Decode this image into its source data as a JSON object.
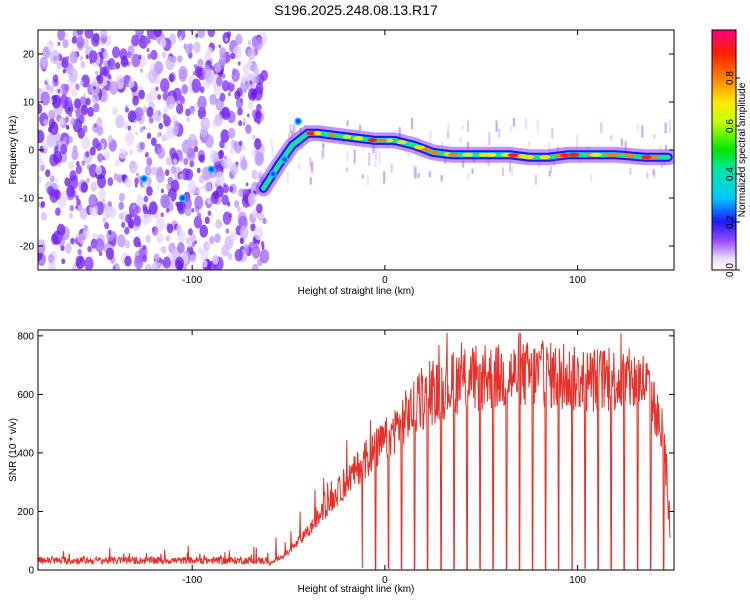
{
  "chart_data": [
    {
      "type": "heatmap",
      "title": "S196.2025.248.08.13.R17",
      "xlabel": "Height of straight line (km)",
      "ylabel": "Frequency (Hz)",
      "xlim": [
        -180,
        150
      ],
      "ylim": [
        -25,
        25
      ],
      "xticks": [
        -100,
        0,
        100
      ],
      "xtick_labels": [
        "-100",
        "0",
        "100"
      ],
      "yticks": [
        -20,
        -10,
        0,
        10,
        20
      ],
      "ytick_labels": [
        "-20",
        "-10",
        "0",
        "10",
        "20"
      ],
      "colorbar": {
        "label": "Normalized spectral amplitude",
        "range": [
          0,
          1
        ],
        "ticks": [
          0.0,
          0.2,
          0.4,
          0.6,
          0.8
        ],
        "tick_labels": [
          "0.0",
          "0.2",
          "0.4",
          "0.6",
          "0.8"
        ]
      },
      "ridge": {
        "x": [
          -63,
          -55,
          -48,
          -40,
          -35,
          -25,
          -15,
          -5,
          5,
          15,
          25,
          35,
          50,
          65,
          75,
          85,
          95,
          105,
          120,
          135,
          147
        ],
        "y": [
          -8,
          -3,
          1,
          3.5,
          3.5,
          3,
          2.5,
          2,
          2,
          1,
          -0.5,
          -1,
          -1,
          -1,
          -1.5,
          -1.5,
          -1,
          -1,
          -1,
          -1.5,
          -1.5
        ]
      }
    },
    {
      "type": "line",
      "title": "",
      "xlabel": "Height of straight line (km)",
      "ylabel": "SNR (10 * v/v)",
      "xlim": [
        -180,
        150
      ],
      "ylim": [
        0,
        820
      ],
      "xticks": [
        -100,
        0,
        100
      ],
      "xtick_labels": [
        "-100",
        "0",
        "100"
      ],
      "yticks": [
        0,
        200,
        400,
        600,
        800
      ],
      "ytick_labels": [
        "0",
        "200",
        "400",
        "600",
        "800"
      ],
      "series": [
        {
          "name": "SNR",
          "color": "#e8302a",
          "envelope_x": [
            -180,
            -60,
            -50,
            -40,
            -30,
            -20,
            -10,
            0,
            10,
            20,
            30,
            40,
            60,
            80,
            100,
            120,
            135,
            140,
            145,
            148
          ],
          "envelope_y": [
            20,
            20,
            60,
            130,
            220,
            300,
            380,
            440,
            520,
            580,
            620,
            650,
            660,
            670,
            650,
            650,
            640,
            560,
            420,
            100
          ]
        }
      ]
    }
  ]
}
